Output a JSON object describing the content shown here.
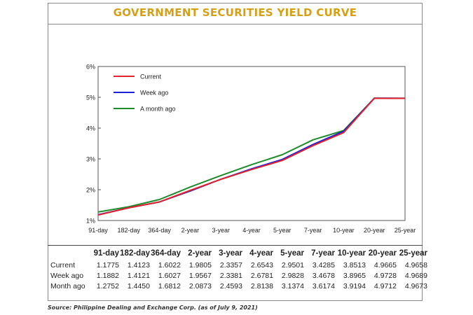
{
  "chart_data": {
    "type": "line",
    "title": "GOVERNMENT SECURITIES YIELD CURVE",
    "categories": [
      "91-day",
      "182-day",
      "364-day",
      "2-year",
      "3-year",
      "4-year",
      "5-year",
      "7-year",
      "10-year",
      "20-year",
      "25-year"
    ],
    "y_ticks": [
      "1%",
      "2%",
      "3%",
      "4%",
      "5%",
      "6%"
    ],
    "ylim": [
      1,
      6
    ],
    "legend_position": "top-left",
    "series": [
      {
        "name": "Current",
        "color": "#e3232c",
        "values": [
          1.1775,
          1.4123,
          1.6022,
          1.9805,
          2.3357,
          2.6543,
          2.9501,
          3.4285,
          3.8513,
          4.9665,
          4.9658
        ]
      },
      {
        "name": "Week ago",
        "color": "#1f1fd6",
        "values": [
          1.1882,
          1.4121,
          1.6027,
          1.9567,
          2.3381,
          2.6781,
          2.9828,
          3.4678,
          3.8965,
          4.9728,
          4.9689
        ]
      },
      {
        "name": "A month ago",
        "color": "#1e8c2a",
        "values": [
          1.2752,
          1.445,
          1.6812,
          2.0873,
          2.4593,
          2.8138,
          3.1374,
          3.6174,
          3.9194,
          4.9712,
          4.9673
        ]
      }
    ]
  },
  "table": {
    "headers": [
      "",
      "91-day",
      "182-day",
      "364-day",
      "2-year",
      "3-year",
      "4-year",
      "5-year",
      "7-year",
      "10-year",
      "20-year",
      "25-year"
    ],
    "rows": [
      [
        "Current",
        "1.1775",
        "1.4123",
        "1.6022",
        "1.9805",
        "2.3357",
        "2.6543",
        "2.9501",
        "3.4285",
        "3.8513",
        "4.9665",
        "4.9658"
      ],
      [
        "Week ago",
        "1.1882",
        "1.4121",
        "1.6027",
        "1.9567",
        "2.3381",
        "2.6781",
        "2.9828",
        "3.4678",
        "3.8965",
        "4.9728",
        "4.9689"
      ],
      [
        "Month ago",
        "1.2752",
        "1.4450",
        "1.6812",
        "2.0873",
        "2.4593",
        "2.8138",
        "3.1374",
        "3.6174",
        "3.9194",
        "4.9712",
        "4.9673"
      ]
    ]
  },
  "source": "Source: Philippine Dealing and Exchange Corp. (as of July 9, 2021)"
}
